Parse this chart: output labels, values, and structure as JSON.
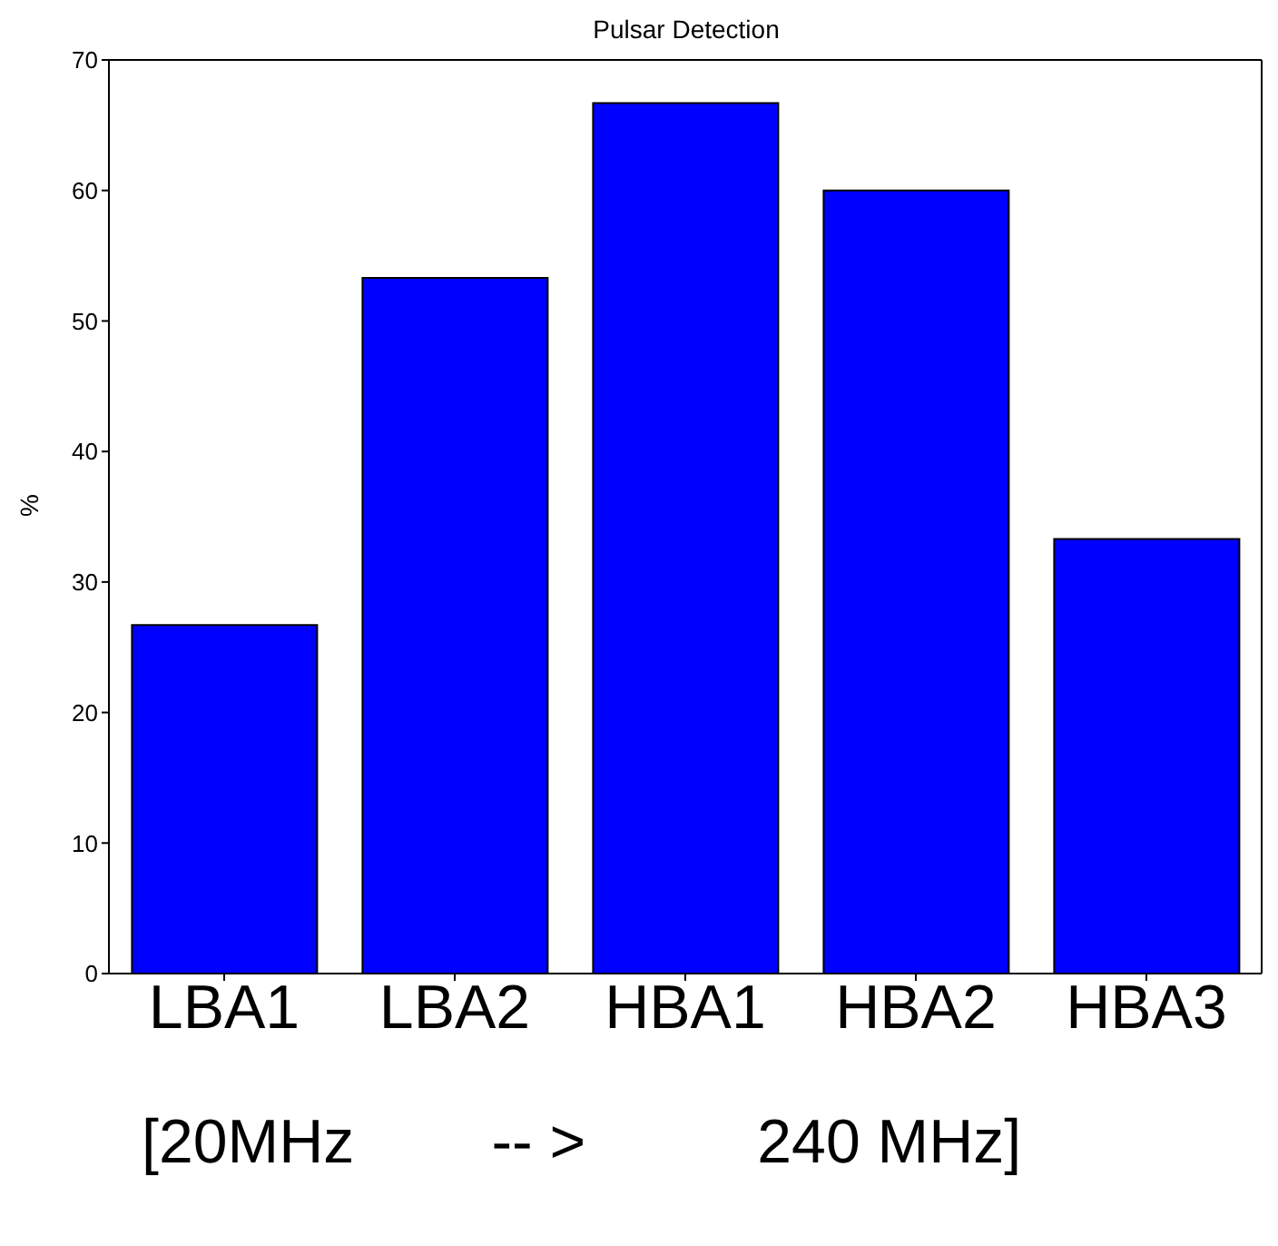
{
  "chart_data": {
    "type": "bar",
    "title": "Pulsar Detection",
    "ylabel": "%",
    "categories": [
      "LBA1",
      "LBA2",
      "HBA1",
      "HBA2",
      "HBA3"
    ],
    "values": [
      26.7,
      53.3,
      66.7,
      60,
      33.3
    ],
    "color": "#0000ff",
    "ylim": [
      0,
      70
    ],
    "yticks": [
      0,
      10,
      20,
      30,
      40,
      50,
      60,
      70
    ],
    "grid": false,
    "legend": false,
    "annotations": [
      "[20MHz        -- >          240 MHz]"
    ]
  }
}
